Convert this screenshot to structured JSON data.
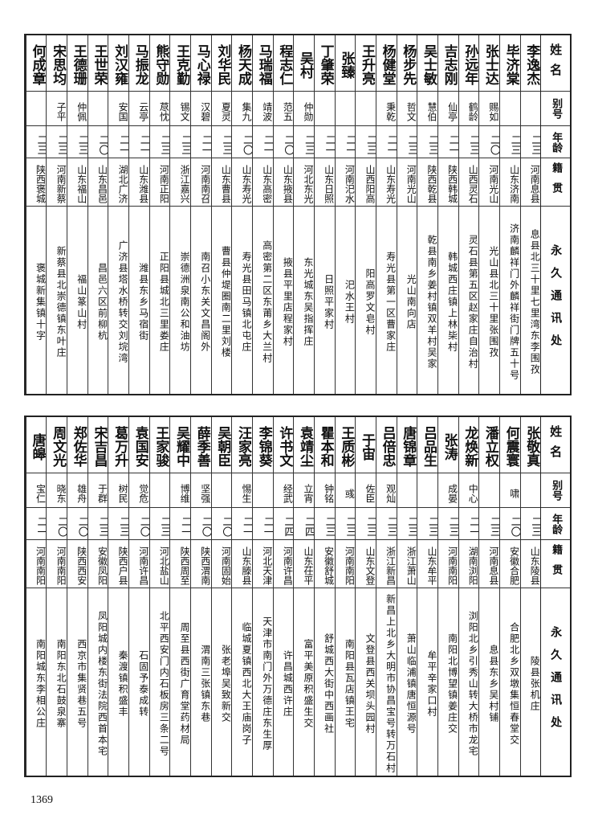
{
  "headers": {
    "name": "姓名",
    "alias": "别号",
    "age": "年龄",
    "origin": "籍贯",
    "address": "永久通讯处"
  },
  "top_table": [
    {
      "name": "李逸杰",
      "alias": "",
      "age": "二三",
      "origin": "河南息县",
      "address": "息县北三十里七里湾东李围孜"
    },
    {
      "name": "毕济棠",
      "alias": "",
      "age": "二三",
      "origin": "山东济南",
      "address": "济南麟祥门外麟祥街门牌五十号"
    },
    {
      "name": "张士达",
      "alias": "赐如",
      "age": "二〇",
      "origin": "河南光山",
      "address": "光山县北三十里张围孜"
    },
    {
      "name": "孙远年",
      "alias": "鹤龄",
      "age": "二三",
      "origin": "山西灵石",
      "address": "灵石县第五区赵家庄自治村"
    },
    {
      "name": "吉志刚",
      "alias": "仙亭",
      "age": "二一",
      "origin": "陕西韩城",
      "address": "韩城西庄镇上林枈村"
    },
    {
      "name": "吴士敏",
      "alias": "慧伯",
      "age": "二三",
      "origin": "陕西乾县",
      "address": "乾县南乡姜村镇双羊村吴家"
    },
    {
      "name": "杨步先",
      "alias": "哲文",
      "age": "二三",
      "origin": "河南光山",
      "address": "光山南向店"
    },
    {
      "name": "杨健堂",
      "alias": "秉乾",
      "age": "二一",
      "origin": "山东寿光",
      "address": "寿光县第一区曹家庄"
    },
    {
      "name": "王升亮",
      "alias": "",
      "age": "二三",
      "origin": "山西阳高",
      "address": "阳高罗文皂村"
    },
    {
      "name": "张臻",
      "alias": "",
      "age": "二一",
      "origin": "河南汜水",
      "address": "汜水王村"
    },
    {
      "name": "丁肇荣",
      "alias": "",
      "age": "二一",
      "origin": "山东日照",
      "address": "日照平家村"
    },
    {
      "name": "吴村",
      "alias": "仲勋",
      "age": "二三",
      "origin": "河北东光",
      "address": "东光城东吴指挥庄"
    },
    {
      "name": "程志仁",
      "alias": "范五",
      "age": "二〇",
      "origin": "山东掖县",
      "address": "掖县平里店程家村"
    },
    {
      "name": "马瑞福",
      "alias": "靖波",
      "age": "二一",
      "origin": "山东高密",
      "address": "高密第二区东莆乡大兰村"
    },
    {
      "name": "杨天成",
      "alias": "集九",
      "age": "二〇",
      "origin": "山东寿光",
      "address": "寿光县田马镇北屯庄"
    },
    {
      "name": "刘华民",
      "alias": "夏灵",
      "age": "二三",
      "origin": "山东曹县",
      "address": "曹县仲堤圈南二里刘楼"
    },
    {
      "name": "马心禄",
      "alias": "汉碧",
      "age": "二一",
      "origin": "河南南召",
      "address": "南召小东关文昌阁外"
    },
    {
      "name": "王克勤",
      "alias": "锡文",
      "age": "二三",
      "origin": "浙江嘉兴",
      "address": "崇德洲泉南公和油坊"
    },
    {
      "name": "熊守勋",
      "alias": "荩忱",
      "age": "二三",
      "origin": "河南正阳",
      "address": "正阳县城北三里娄庄"
    },
    {
      "name": "马振龙",
      "alias": "云亭",
      "age": "二一",
      "origin": "山东潍县",
      "address": "潍县东乡马宿街"
    },
    {
      "name": "刘汉雍",
      "alias": "安国",
      "age": "二一",
      "origin": "湖北广济",
      "address": "广济县塔水桥转交刘垸湾"
    },
    {
      "name": "王世荣",
      "alias": "",
      "age": "二〇",
      "origin": "山东昌邑",
      "address": "昌邑六区前柳杭"
    },
    {
      "name": "王德珊",
      "alias": "仲佩",
      "age": "二三",
      "origin": "山东福山",
      "address": "福山篆山村"
    },
    {
      "name": "宋思均",
      "alias": "子平",
      "age": "二三",
      "origin": "河南新蔡",
      "address": "新蔡县北崇德镇东叶庄"
    },
    {
      "name": "何成章",
      "alias": "",
      "age": "二三",
      "origin": "陕西褒城",
      "address": "褒城新集镇十字"
    }
  ],
  "bottom_table": [
    {
      "name": "张敬真",
      "alias": "",
      "age": "二三",
      "origin": "山东陵县",
      "address": "陵县张机庄"
    },
    {
      "name": "何震寰",
      "alias": "啸",
      "age": "二〇",
      "origin": "安徽合肥",
      "address": "合肥北乡双墩集恒春堂交"
    },
    {
      "name": "潘立权",
      "alias": "",
      "age": "二三",
      "origin": "河南息县",
      "address": "息县东乡吴村铺"
    },
    {
      "name": "龙焕新",
      "alias": "中心",
      "age": "二一",
      "origin": "湖南浏阳",
      "address": "浏阳北乡引秀山转大桥市龙宅"
    },
    {
      "name": "张涛",
      "alias": "成晏",
      "age": "二三",
      "origin": "河南南阳",
      "address": "南阳北博望镇姜庄交"
    },
    {
      "name": "吕品生",
      "alias": "",
      "age": "二三",
      "origin": "山东牟平",
      "address": "牟平辛家口村"
    },
    {
      "name": "唐锦章",
      "alias": "",
      "age": "二三",
      "origin": "浙江萧山",
      "address": "萧山临浦镇唐恒源号"
    },
    {
      "name": "吕倍忠",
      "alias": "观灿",
      "age": "二三",
      "origin": "浙江新昌",
      "address": "新昌上北乡大明市协昌宝号转万石村"
    },
    {
      "name": "于宙",
      "alias": "佐臣",
      "age": "二三",
      "origin": "山东文登",
      "address": "文登县西关坝头园村"
    },
    {
      "name": "王质彬",
      "alias": "彧",
      "age": "二三",
      "origin": "河南南阳",
      "address": "南阳县瓦店镇王宅"
    },
    {
      "name": "瞿本和",
      "alias": "钟铭",
      "age": "二三",
      "origin": "安徽舒城",
      "address": "舒城西大街中西画社"
    },
    {
      "name": "袁靖尘",
      "alias": "立宵",
      "age": "二四",
      "origin": "山东茌平",
      "address": "富平美原积盛生交"
    },
    {
      "name": "许书文",
      "alias": "经武",
      "age": "二四",
      "origin": "河南许昌",
      "address": "许昌城西许庄"
    },
    {
      "name": "李锦葵",
      "alias": "",
      "age": "二一",
      "origin": "河北天津",
      "address": "天津市南门外万德庄东生厚"
    },
    {
      "name": "汪家亮",
      "alias": "惕生",
      "age": "二一",
      "origin": "山东滕县",
      "address": "临城夏镇西北大王庙岗子"
    },
    {
      "name": "吴朝臣",
      "alias": "",
      "age": "二〇",
      "origin": "河南固始",
      "address": "张老埠吴致新交"
    },
    {
      "name": "薛季善",
      "alias": "坚强",
      "age": "二〇",
      "origin": "陕西渭南",
      "address": "渭南三张镇东巷"
    },
    {
      "name": "吴耀中",
      "alias": "博维",
      "age": "二一",
      "origin": "陕西周至",
      "address": "周至县西街广育堂药材局"
    },
    {
      "name": "王家骏",
      "alias": "",
      "age": "二三",
      "origin": "河北盐山",
      "address": "北平西安门内石板房三条二号"
    },
    {
      "name": "袁国安",
      "alias": "觉危",
      "age": "二〇",
      "origin": "河南许昌",
      "address": "石固予泰成转"
    },
    {
      "name": "葛万升",
      "alias": "树民",
      "age": "二三",
      "origin": "陕西户县",
      "address": "秦渡镇积盛丰"
    },
    {
      "name": "宋吉昌",
      "alias": "于群",
      "age": "二三",
      "origin": "安徽凤阳",
      "address": "凤阳城内楼东街法院西首本宅"
    },
    {
      "name": "郑佐华",
      "alias": "雄舟",
      "age": "二〇",
      "origin": "陕西西安",
      "address": "西京市集贤巷五号"
    },
    {
      "name": "周文光",
      "alias": "晓东",
      "age": "二〇",
      "origin": "河南南阳",
      "address": "南阳东北石鼓泉寨"
    },
    {
      "name": "唐皞",
      "alias": "宝仁",
      "age": "二一",
      "origin": "河南南阳",
      "address": "南阳城东李相公庄"
    }
  ],
  "page_number": "1369"
}
